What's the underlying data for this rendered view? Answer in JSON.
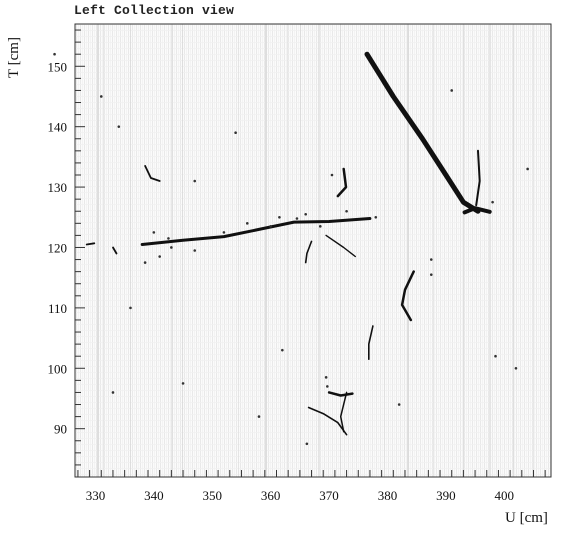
{
  "figure": {
    "title": "Left Collection view",
    "xlabel": "U [cm]",
    "ylabel": "T [cm]",
    "x_ticks": [
      "330",
      "340",
      "350",
      "360",
      "370",
      "380",
      "390",
      "400"
    ],
    "y_ticks": [
      "90",
      "100",
      "110",
      "120",
      "130",
      "140",
      "150"
    ]
  },
  "scale": {
    "x_range": [
      326.5,
      408
    ],
    "y_range": [
      82,
      157
    ]
  },
  "tracks": [
    {
      "name": "long-horizontal-track",
      "points": [
        [
          338,
          120.5
        ],
        [
          345,
          121.2
        ],
        [
          352,
          121.8
        ],
        [
          358,
          123
        ],
        [
          364,
          124.2
        ],
        [
          370,
          124.3
        ],
        [
          377,
          124.8
        ]
      ],
      "weight": 3
    },
    {
      "name": "diagonal-track",
      "points": [
        [
          376.5,
          152
        ],
        [
          381,
          145
        ],
        [
          386,
          138
        ],
        [
          390,
          132
        ],
        [
          393,
          127.5
        ],
        [
          395.5,
          126
        ]
      ],
      "weight": 5
    },
    {
      "name": "hook-end",
      "points": [
        [
          393.2,
          125.8
        ],
        [
          395,
          126.5
        ],
        [
          397.5,
          125.9
        ]
      ],
      "weight": 4
    },
    {
      "name": "vertical-branch",
      "points": [
        [
          395.2,
          127
        ],
        [
          395.8,
          131
        ],
        [
          395.5,
          136
        ]
      ],
      "weight": 2
    },
    {
      "name": "upper-short-track",
      "points": [
        [
          372.5,
          133
        ],
        [
          372.9,
          130
        ],
        [
          371.5,
          128.5
        ]
      ],
      "weight": 2.5
    },
    {
      "name": "left-small-track",
      "points": [
        [
          338.5,
          133.5
        ],
        [
          339.5,
          131.5
        ],
        [
          341,
          131
        ]
      ],
      "weight": 1.8
    },
    {
      "name": "right-mid-track",
      "points": [
        [
          384.5,
          116
        ],
        [
          383,
          113
        ],
        [
          382.5,
          110.5
        ],
        [
          384,
          108
        ]
      ],
      "weight": 2.5
    },
    {
      "name": "mid-vertical-track",
      "points": [
        [
          377.5,
          107
        ],
        [
          376.8,
          104
        ],
        [
          376.8,
          101.5
        ]
      ],
      "weight": 1.6
    },
    {
      "name": "lower-cluster-a",
      "points": [
        [
          370,
          96
        ],
        [
          372,
          95.5
        ],
        [
          374,
          95.8
        ]
      ],
      "weight": 2.5
    },
    {
      "name": "lower-cluster-b",
      "points": [
        [
          366.5,
          93.5
        ],
        [
          369,
          92.5
        ],
        [
          371.5,
          91
        ],
        [
          373,
          89
        ]
      ],
      "weight": 1.6
    },
    {
      "name": "lower-cluster-c",
      "points": [
        [
          373,
          96
        ],
        [
          372,
          92
        ],
        [
          372.5,
          89.5
        ]
      ],
      "weight": 1.5
    },
    {
      "name": "branch-down-1",
      "points": [
        [
          367,
          121
        ],
        [
          366.2,
          119
        ],
        [
          366,
          117.5
        ]
      ],
      "weight": 1.6
    },
    {
      "name": "branch-down-2",
      "points": [
        [
          369.5,
          122
        ],
        [
          372.5,
          120
        ],
        [
          374.5,
          118.5
        ]
      ],
      "weight": 1.4
    },
    {
      "name": "left-stub-1",
      "points": [
        [
          328.5,
          120.5
        ],
        [
          329.8,
          120.7
        ]
      ],
      "weight": 1.8
    },
    {
      "name": "left-stub-2",
      "points": [
        [
          333,
          120
        ],
        [
          333.6,
          119
        ]
      ],
      "weight": 1.8
    }
  ],
  "dots": [
    [
      331,
      145
    ],
    [
      334,
      140
    ],
    [
      323,
      152
    ],
    [
      370.5,
      132
    ],
    [
      366,
      125.5
    ],
    [
      354,
      139
    ],
    [
      347,
      131
    ],
    [
      387.5,
      118
    ],
    [
      360,
      123.5
    ],
    [
      356,
      124
    ],
    [
      352,
      122.5
    ],
    [
      343,
      120
    ],
    [
      341,
      118.5
    ],
    [
      347,
      119.5
    ],
    [
      373,
      126
    ],
    [
      362,
      103
    ],
    [
      369.5,
      98.5
    ],
    [
      369.7,
      97
    ],
    [
      366.2,
      87.5
    ],
    [
      345,
      97.5
    ],
    [
      398.5,
      102
    ],
    [
      404,
      133
    ],
    [
      387.5,
      115.5
    ],
    [
      391,
      146
    ],
    [
      402,
      100
    ],
    [
      333,
      96
    ],
    [
      378,
      125
    ],
    [
      398,
      127.5
    ],
    [
      382,
      94
    ],
    [
      336,
      110
    ],
    [
      358,
      92
    ],
    [
      361.5,
      125
    ],
    [
      364.5,
      124.8
    ],
    [
      368.5,
      123.5
    ],
    [
      340,
      122.5
    ],
    [
      338.5,
      117.5
    ],
    [
      342.5,
      121.5
    ]
  ]
}
